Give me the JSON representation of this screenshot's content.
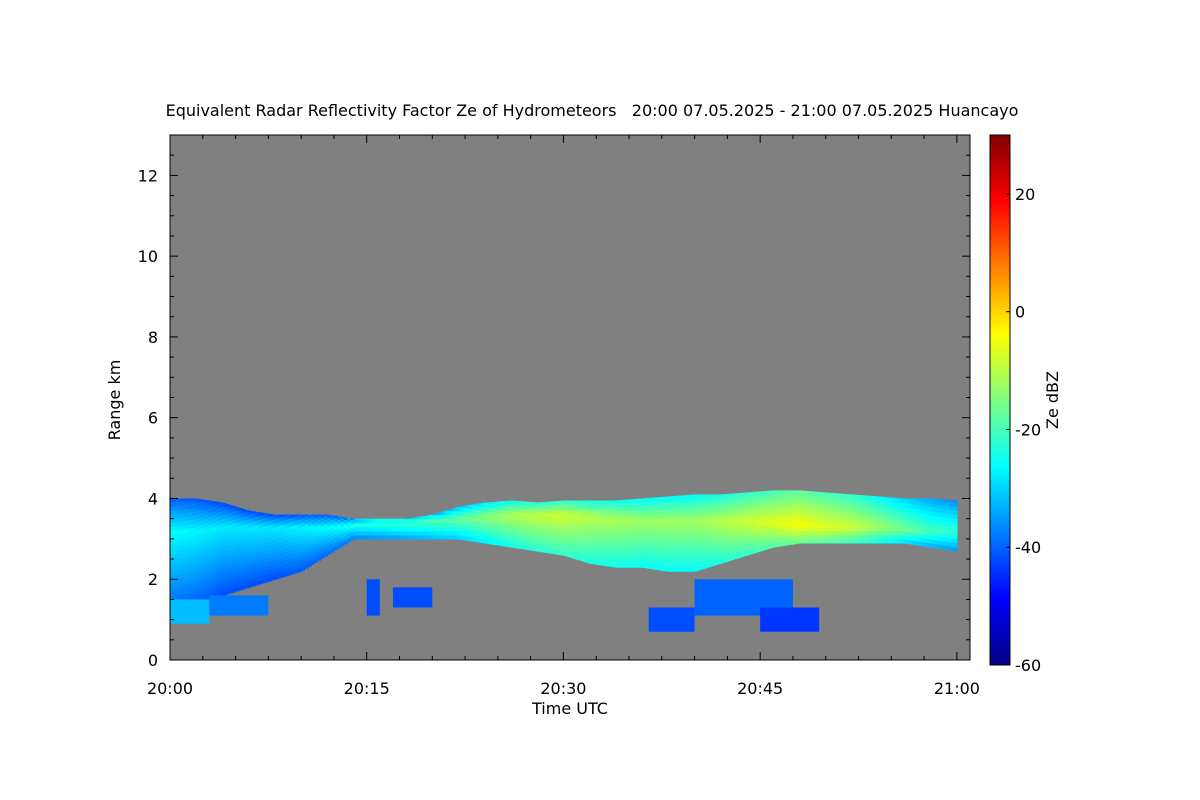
{
  "chart_data": {
    "type": "heatmap",
    "title": "Equivalent Radar Reflectivity Factor Ze of Hydrometeors   20:00 07.05.2025 - 21:00 07.05.2025 Huancayo",
    "xlabel": "Time UTC",
    "ylabel": "Range km",
    "x_unit": "minutes after 20:00 UTC",
    "xlim": [
      0,
      61
    ],
    "ylim": [
      0,
      13
    ],
    "x_ticks": [
      {
        "value": 0,
        "label": "20:00"
      },
      {
        "value": 15,
        "label": "20:15"
      },
      {
        "value": 30,
        "label": "20:30"
      },
      {
        "value": 45,
        "label": "20:45"
      },
      {
        "value": 60,
        "label": "21:00"
      }
    ],
    "y_ticks": [
      {
        "value": 0,
        "label": "0"
      },
      {
        "value": 2,
        "label": "2"
      },
      {
        "value": 4,
        "label": "4"
      },
      {
        "value": 6,
        "label": "6"
      },
      {
        "value": 8,
        "label": "8"
      },
      {
        "value": 10,
        "label": "10"
      },
      {
        "value": 12,
        "label": "12"
      }
    ],
    "colorbar": {
      "label": "Ze dBZ",
      "range": [
        -60,
        30
      ],
      "ticks": [
        {
          "value": -60,
          "label": "-60"
        },
        {
          "value": -40,
          "label": "-40"
        },
        {
          "value": -20,
          "label": "-20"
        },
        {
          "value": 0,
          "label": "0"
        },
        {
          "value": 20,
          "label": "20"
        }
      ],
      "colormap": "jet"
    },
    "no_data_color": "#808080",
    "main_layer": {
      "time": [
        0,
        2,
        4,
        6,
        8,
        10,
        12,
        14,
        16,
        18,
        20,
        22,
        24,
        26,
        28,
        30,
        32,
        34,
        36,
        38,
        40,
        42,
        44,
        46,
        48,
        50,
        52,
        54,
        56,
        58,
        60
      ],
      "top_km": [
        4.0,
        4.0,
        3.9,
        3.7,
        3.6,
        3.6,
        3.6,
        3.5,
        3.5,
        3.5,
        3.6,
        3.8,
        3.9,
        3.95,
        3.9,
        3.95,
        3.95,
        3.95,
        4.0,
        4.05,
        4.1,
        4.1,
        4.15,
        4.2,
        4.2,
        4.15,
        4.1,
        4.05,
        4.0,
        4.0,
        3.95
      ],
      "base_km": [
        1.2,
        1.3,
        1.6,
        1.8,
        2.0,
        2.2,
        2.6,
        3.0,
        3.0,
        3.0,
        3.0,
        3.0,
        2.9,
        2.8,
        2.7,
        2.6,
        2.4,
        2.3,
        2.3,
        2.2,
        2.2,
        2.4,
        2.6,
        2.8,
        2.9,
        2.9,
        2.9,
        2.9,
        2.9,
        2.8,
        2.7
      ],
      "peak_height_km": [
        3.2,
        3.2,
        3.3,
        3.3,
        3.3,
        3.3,
        3.3,
        3.35,
        3.4,
        3.4,
        3.45,
        3.5,
        3.55,
        3.6,
        3.6,
        3.6,
        3.55,
        3.5,
        3.45,
        3.45,
        3.45,
        3.45,
        3.45,
        3.4,
        3.35,
        3.3,
        3.3,
        3.3,
        3.25,
        3.2,
        3.2
      ],
      "peak_dbz": [
        -26,
        -27,
        -28,
        -28,
        -28,
        -27,
        -26,
        -24,
        -22,
        -21,
        -19,
        -17,
        -14,
        -11,
        -9,
        -8,
        -10,
        -11,
        -12,
        -12,
        -12,
        -10,
        -8,
        -6,
        -4,
        -6,
        -8,
        -12,
        -16,
        -20,
        -22
      ]
    },
    "lower_patches": [
      {
        "time_start": 0.0,
        "time_end": 3.0,
        "base_km": 0.9,
        "top_km": 1.5,
        "dbz": -32
      },
      {
        "time_start": 3.0,
        "time_end": 7.5,
        "base_km": 1.1,
        "top_km": 1.6,
        "dbz": -38
      },
      {
        "time_start": 15.0,
        "time_end": 16.0,
        "base_km": 1.1,
        "top_km": 2.0,
        "dbz": -42
      },
      {
        "time_start": 17.0,
        "time_end": 20.0,
        "base_km": 1.3,
        "top_km": 1.8,
        "dbz": -42
      },
      {
        "time_start": 36.5,
        "time_end": 40.0,
        "base_km": 0.7,
        "top_km": 1.3,
        "dbz": -42
      },
      {
        "time_start": 40.0,
        "time_end": 47.5,
        "base_km": 1.1,
        "top_km": 2.0,
        "dbz": -40
      },
      {
        "time_start": 45.0,
        "time_end": 49.5,
        "base_km": 0.7,
        "top_km": 1.3,
        "dbz": -44
      }
    ]
  }
}
